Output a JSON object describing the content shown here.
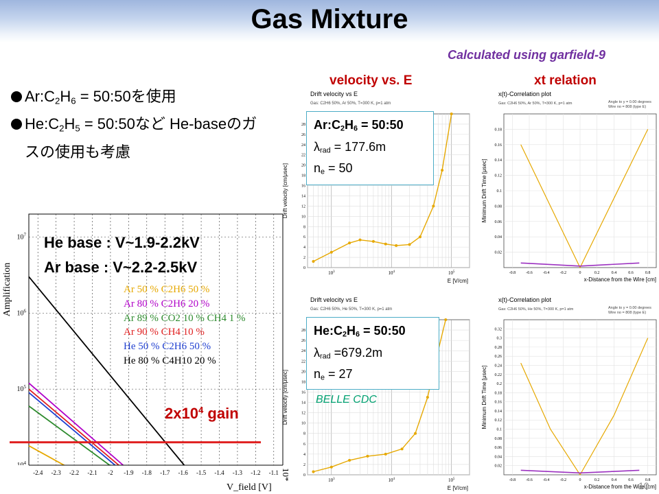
{
  "slide": {
    "title": "Gas Mixture",
    "calc_note": "Calculated using garfield-9",
    "page_number": "10",
    "colors": {
      "title_band": "#9fb6de",
      "accent_red": "#c00000",
      "purple": "#7030a0",
      "box_border": "#4bacc6"
    }
  },
  "columns": {
    "velocity_header": "velocity vs. E",
    "xt_header": "xt relation"
  },
  "bullets": {
    "b1_a": "Ar:C",
    "b1_sub": "2",
    "b1_b": "H",
    "b1_sub2": "6",
    "b1_c": " = 50:50を使用",
    "b2_a": "He:C",
    "b2_sub": "2",
    "b2_b": "H",
    "b2_sub2": "5",
    "b2_c": " = 50:50など He-baseのガスの使用も考慮"
  },
  "ar_box": {
    "gas_a": "Ar:C",
    "gas_sub": "2",
    "gas_b": "H",
    "gas_sub2": "6",
    "gas_c": " = 50:50",
    "lambda": "λ",
    "lambda_sub": "rad",
    "lambda_val": " = 177.6m",
    "ne": "n",
    "ne_sub": "e",
    "ne_val": " = 50"
  },
  "he_box": {
    "gas_a": "He:C",
    "gas_sub": "2",
    "gas_b": "H",
    "gas_sub2": "6",
    "gas_c": " = 50:50",
    "lambda": "λ",
    "lambda_sub": "rad",
    "lambda_val": " =679.2m",
    "ne": "n",
    "ne_sub": "e",
    "ne_val": " = 27",
    "belle": "BELLE CDC"
  },
  "voltage": {
    "he_line": "He base : V~1.9-2.2kV",
    "ar_line": "Ar base  : V~2.2-2.5kV"
  },
  "gain": {
    "text_a": "2x10",
    "text_sup": "4",
    "text_b": " gain"
  },
  "chart_data": [
    {
      "type": "line",
      "title": "",
      "xlabel": "V_field [V]",
      "ylabel": "Amplification",
      "x_multiplier": "10*",
      "y_scale": "log",
      "xlim": [
        -2.45,
        -1.05
      ],
      "ylim": [
        10000,
        20000000
      ],
      "x_ticks": [
        "-2.4",
        "-2.3",
        "-2.2",
        "-2.1",
        "-2",
        "-1.9",
        "-1.8",
        "-1.7",
        "-1.6",
        "-1.5",
        "-1.4",
        "-1.3",
        "-1.2",
        "-1.1"
      ],
      "y_ticks": [
        "10^4",
        "10^5",
        "10^6",
        "10^7"
      ],
      "series": [
        {
          "name": "Ar 50 % C2H6 50 %",
          "color": "#e6a800",
          "x": [
            -2.45,
            -2.05
          ],
          "y": [
            18000,
            1500
          ]
        },
        {
          "name": "Ar 80 % C2H6 20 %",
          "color": "#b000c8",
          "x": [
            -2.45,
            -1.8
          ],
          "y": [
            120000,
            1500
          ]
        },
        {
          "name": "Ar 89 % CO2 10 % CH4 1 %",
          "color": "#2e8b2e",
          "x": [
            -2.45,
            -1.85
          ],
          "y": [
            60000,
            1500
          ]
        },
        {
          "name": "Ar 90 % CH4 10 %",
          "color": "#e02020",
          "x": [
            -2.45,
            -1.82
          ],
          "y": [
            100000,
            1500
          ]
        },
        {
          "name": "He 50 % C2H6 50 %",
          "color": "#1f3fd0",
          "x": [
            -2.45,
            -1.84
          ],
          "y": [
            90000,
            1500
          ]
        },
        {
          "name": "He 80 % C4H10 20 %",
          "color": "#000000",
          "x": [
            -2.45,
            -1.5
          ],
          "y": [
            3000000,
            1500
          ]
        }
      ],
      "hline": {
        "y": 20000,
        "color": "#e02020"
      }
    },
    {
      "type": "line",
      "title": "Drift velocity vs E",
      "subtitle": "Gas: C2H6 50%, Ar 50%, T=300 K, p=1 atm",
      "xlabel": "E [V/cm]",
      "ylabel": "Drift velocity [cm/μsec]",
      "x_scale": "log",
      "xlim": [
        400,
        200000
      ],
      "ylim": [
        0,
        30
      ],
      "x_ticks": [
        "10^3",
        "10^4",
        "10^5"
      ],
      "y_ticks": [
        "0",
        "2",
        "4",
        "6",
        "8",
        "10",
        "12",
        "14",
        "16",
        "18",
        "20",
        "22",
        "24",
        "26",
        "28"
      ],
      "series": [
        {
          "color": "#e6a800",
          "x": [
            500,
            1000,
            2000,
            3000,
            5000,
            8000,
            12000,
            20000,
            30000,
            50000,
            70000,
            100000
          ],
          "y": [
            1.2,
            3,
            4.8,
            5.4,
            5.1,
            4.6,
            4.3,
            4.5,
            6,
            12,
            19,
            30
          ]
        }
      ]
    },
    {
      "type": "line",
      "title": "x(t)-Correlation plot",
      "subtitle": "Gas: C2H6 50%, Ar 50%, T=300 K, p=1 atm",
      "note_a": "Angle to y = 0.00 degrees",
      "note_b": "Wire no = 808 (type E)",
      "xlabel": "x-Distance from the Wire [cm]",
      "ylabel": "Minimum Drift Time [μsec]",
      "xlim": [
        -0.9,
        0.9
      ],
      "ylim": [
        0,
        0.2
      ],
      "x_ticks": [
        "-0.8",
        "-0.6",
        "-0.4",
        "-0.2",
        "0",
        "0.2",
        "0.4",
        "0.6",
        "0.8"
      ],
      "y_ticks": [
        "0.02",
        "0.04",
        "0.06",
        "0.08",
        "0.1",
        "0.12",
        "0.14",
        "0.16",
        "0.18"
      ],
      "series": [
        {
          "color": "#e6a800",
          "x": [
            -0.7,
            -0.35,
            0,
            0.4,
            0.8
          ],
          "y": [
            0.16,
            0.08,
            0,
            0.09,
            0.18
          ]
        },
        {
          "color": "#9b30c0",
          "x": [
            -0.7,
            0,
            0.7
          ],
          "y": [
            0.006,
            0.002,
            0.006
          ]
        }
      ]
    },
    {
      "type": "line",
      "title": "Drift velocity vs E",
      "subtitle": "Gas: C2H6 50%, He 50%, T=300 K, p=1 atm",
      "xlabel": "E [V/cm]",
      "ylabel": "Drift velocity [cm/μsec]",
      "x_scale": "log",
      "xlim": [
        400,
        200000
      ],
      "ylim": [
        0,
        30
      ],
      "x_ticks": [
        "10^3",
        "10^4",
        "10^5"
      ],
      "y_ticks": [
        "0",
        "2",
        "4",
        "6",
        "8",
        "10",
        "12",
        "14",
        "16",
        "18",
        "20",
        "22",
        "24",
        "26",
        "28"
      ],
      "series": [
        {
          "color": "#e6a800",
          "x": [
            500,
            1000,
            2000,
            4000,
            8000,
            15000,
            25000,
            40000,
            60000,
            80000
          ],
          "y": [
            0.6,
            1.5,
            2.8,
            3.6,
            4,
            5,
            8,
            15,
            24,
            30
          ]
        }
      ]
    },
    {
      "type": "line",
      "title": "x(t)-Correlation plot",
      "subtitle": "Gas: C2H6 50%, He 50%, T=300 K, p=1 atm",
      "note_a": "Angle to y = 0.00 degrees",
      "note_b": "Wire no = 808 (type E)",
      "xlabel": "x-Distance from the Wire [cm]",
      "ylabel": "Minimum Drift Time [μsec]",
      "xlim": [
        -0.9,
        0.9
      ],
      "ylim": [
        0,
        0.34
      ],
      "x_ticks": [
        "-0.8",
        "-0.6",
        "-0.4",
        "-0.2",
        "0",
        "0.2",
        "0.4",
        "0.6",
        "0.8"
      ],
      "y_ticks": [
        "0.02",
        "0.04",
        "0.06",
        "0.08",
        "0.1",
        "0.12",
        "0.14",
        "0.16",
        "0.18",
        "0.2",
        "0.22",
        "0.24",
        "0.26",
        "0.28",
        "0.3",
        "0.32"
      ],
      "series": [
        {
          "color": "#e6a800",
          "x": [
            -0.7,
            -0.35,
            0,
            0.4,
            0.8
          ],
          "y": [
            0.245,
            0.1,
            0,
            0.13,
            0.3
          ]
        },
        {
          "color": "#9b30c0",
          "x": [
            -0.7,
            0,
            0.7
          ],
          "y": [
            0.01,
            0.004,
            0.01
          ]
        }
      ]
    }
  ]
}
